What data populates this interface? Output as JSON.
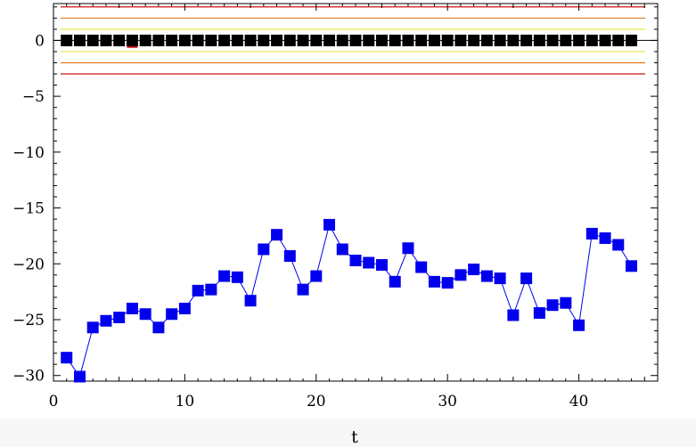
{
  "chart_data": {
    "type": "scatter",
    "title": "",
    "xlabel": "t",
    "ylabel": "",
    "xlim": [
      0,
      46
    ],
    "ylim": [
      -30.5,
      3.3
    ],
    "x_ticks": [
      0,
      10,
      20,
      30,
      40
    ],
    "y_ticks": [
      0,
      -5,
      -10,
      -15,
      -20,
      -25,
      -30
    ],
    "x_tick_labels": [
      "0",
      "10",
      "20",
      "30",
      "40"
    ],
    "y_tick_labels": [
      "0",
      "−5",
      "−10",
      "−15",
      "−20",
      "−25",
      "−30"
    ],
    "grid": false,
    "reference_lines": [
      {
        "y": 3,
        "color": "#cc1111"
      },
      {
        "y": 2,
        "color": "#e07a1a"
      },
      {
        "y": 1,
        "color": "#e8e84a"
      },
      {
        "y": -1,
        "color": "#e8e84a"
      },
      {
        "y": -2,
        "color": "#e07a1a"
      },
      {
        "y": -3,
        "color": "#cc1111"
      }
    ],
    "series": [
      {
        "color": "#000000",
        "connected": false,
        "x": [
          1,
          2,
          3,
          4,
          5,
          6,
          7,
          8,
          9,
          10,
          11,
          12,
          13,
          14,
          15,
          16,
          17,
          18,
          19,
          20,
          21,
          22,
          23,
          24,
          25,
          26,
          27,
          28,
          29,
          30,
          31,
          32,
          33,
          34,
          35,
          36,
          37,
          38,
          39,
          40,
          41,
          42,
          43,
          44
        ],
        "y": [
          0,
          0,
          0,
          0,
          0,
          0,
          0,
          0,
          0,
          0,
          0,
          0,
          0,
          0,
          0,
          0,
          0,
          0,
          0,
          0,
          0,
          0,
          0,
          0,
          0,
          0,
          0,
          0,
          0,
          0,
          0,
          0,
          0,
          0,
          0,
          0,
          0,
          0,
          0,
          0,
          0,
          0,
          0,
          0
        ],
        "highlight": {
          "x": 6,
          "y": -0.5,
          "color": "#cc0000"
        }
      },
      {
        "color": "#0000ee",
        "connected": true,
        "x": [
          1,
          2,
          3,
          4,
          5,
          6,
          7,
          8,
          9,
          10,
          11,
          12,
          13,
          14,
          15,
          16,
          17,
          18,
          19,
          20,
          21,
          22,
          23,
          24,
          25,
          26,
          27,
          28,
          29,
          30,
          31,
          32,
          33,
          34,
          35,
          36,
          37,
          38,
          39,
          40,
          41,
          42,
          43,
          44
        ],
        "y": [
          -28.4,
          -30.1,
          -25.7,
          -25.1,
          -24.8,
          -24.0,
          -24.5,
          -25.7,
          -24.5,
          -24.0,
          -22.4,
          -22.3,
          -21.1,
          -21.2,
          -23.3,
          -18.7,
          -17.4,
          -19.3,
          -22.3,
          -21.1,
          -16.5,
          -18.7,
          -19.7,
          -19.9,
          -20.1,
          -21.6,
          -18.6,
          -20.3,
          -21.6,
          -21.7,
          -21.0,
          -20.5,
          -21.1,
          -21.3,
          -24.6,
          -21.3,
          -24.4,
          -23.7,
          -23.5,
          -25.5,
          -17.3,
          -17.7,
          -18.3,
          -20.2
        ]
      }
    ]
  }
}
